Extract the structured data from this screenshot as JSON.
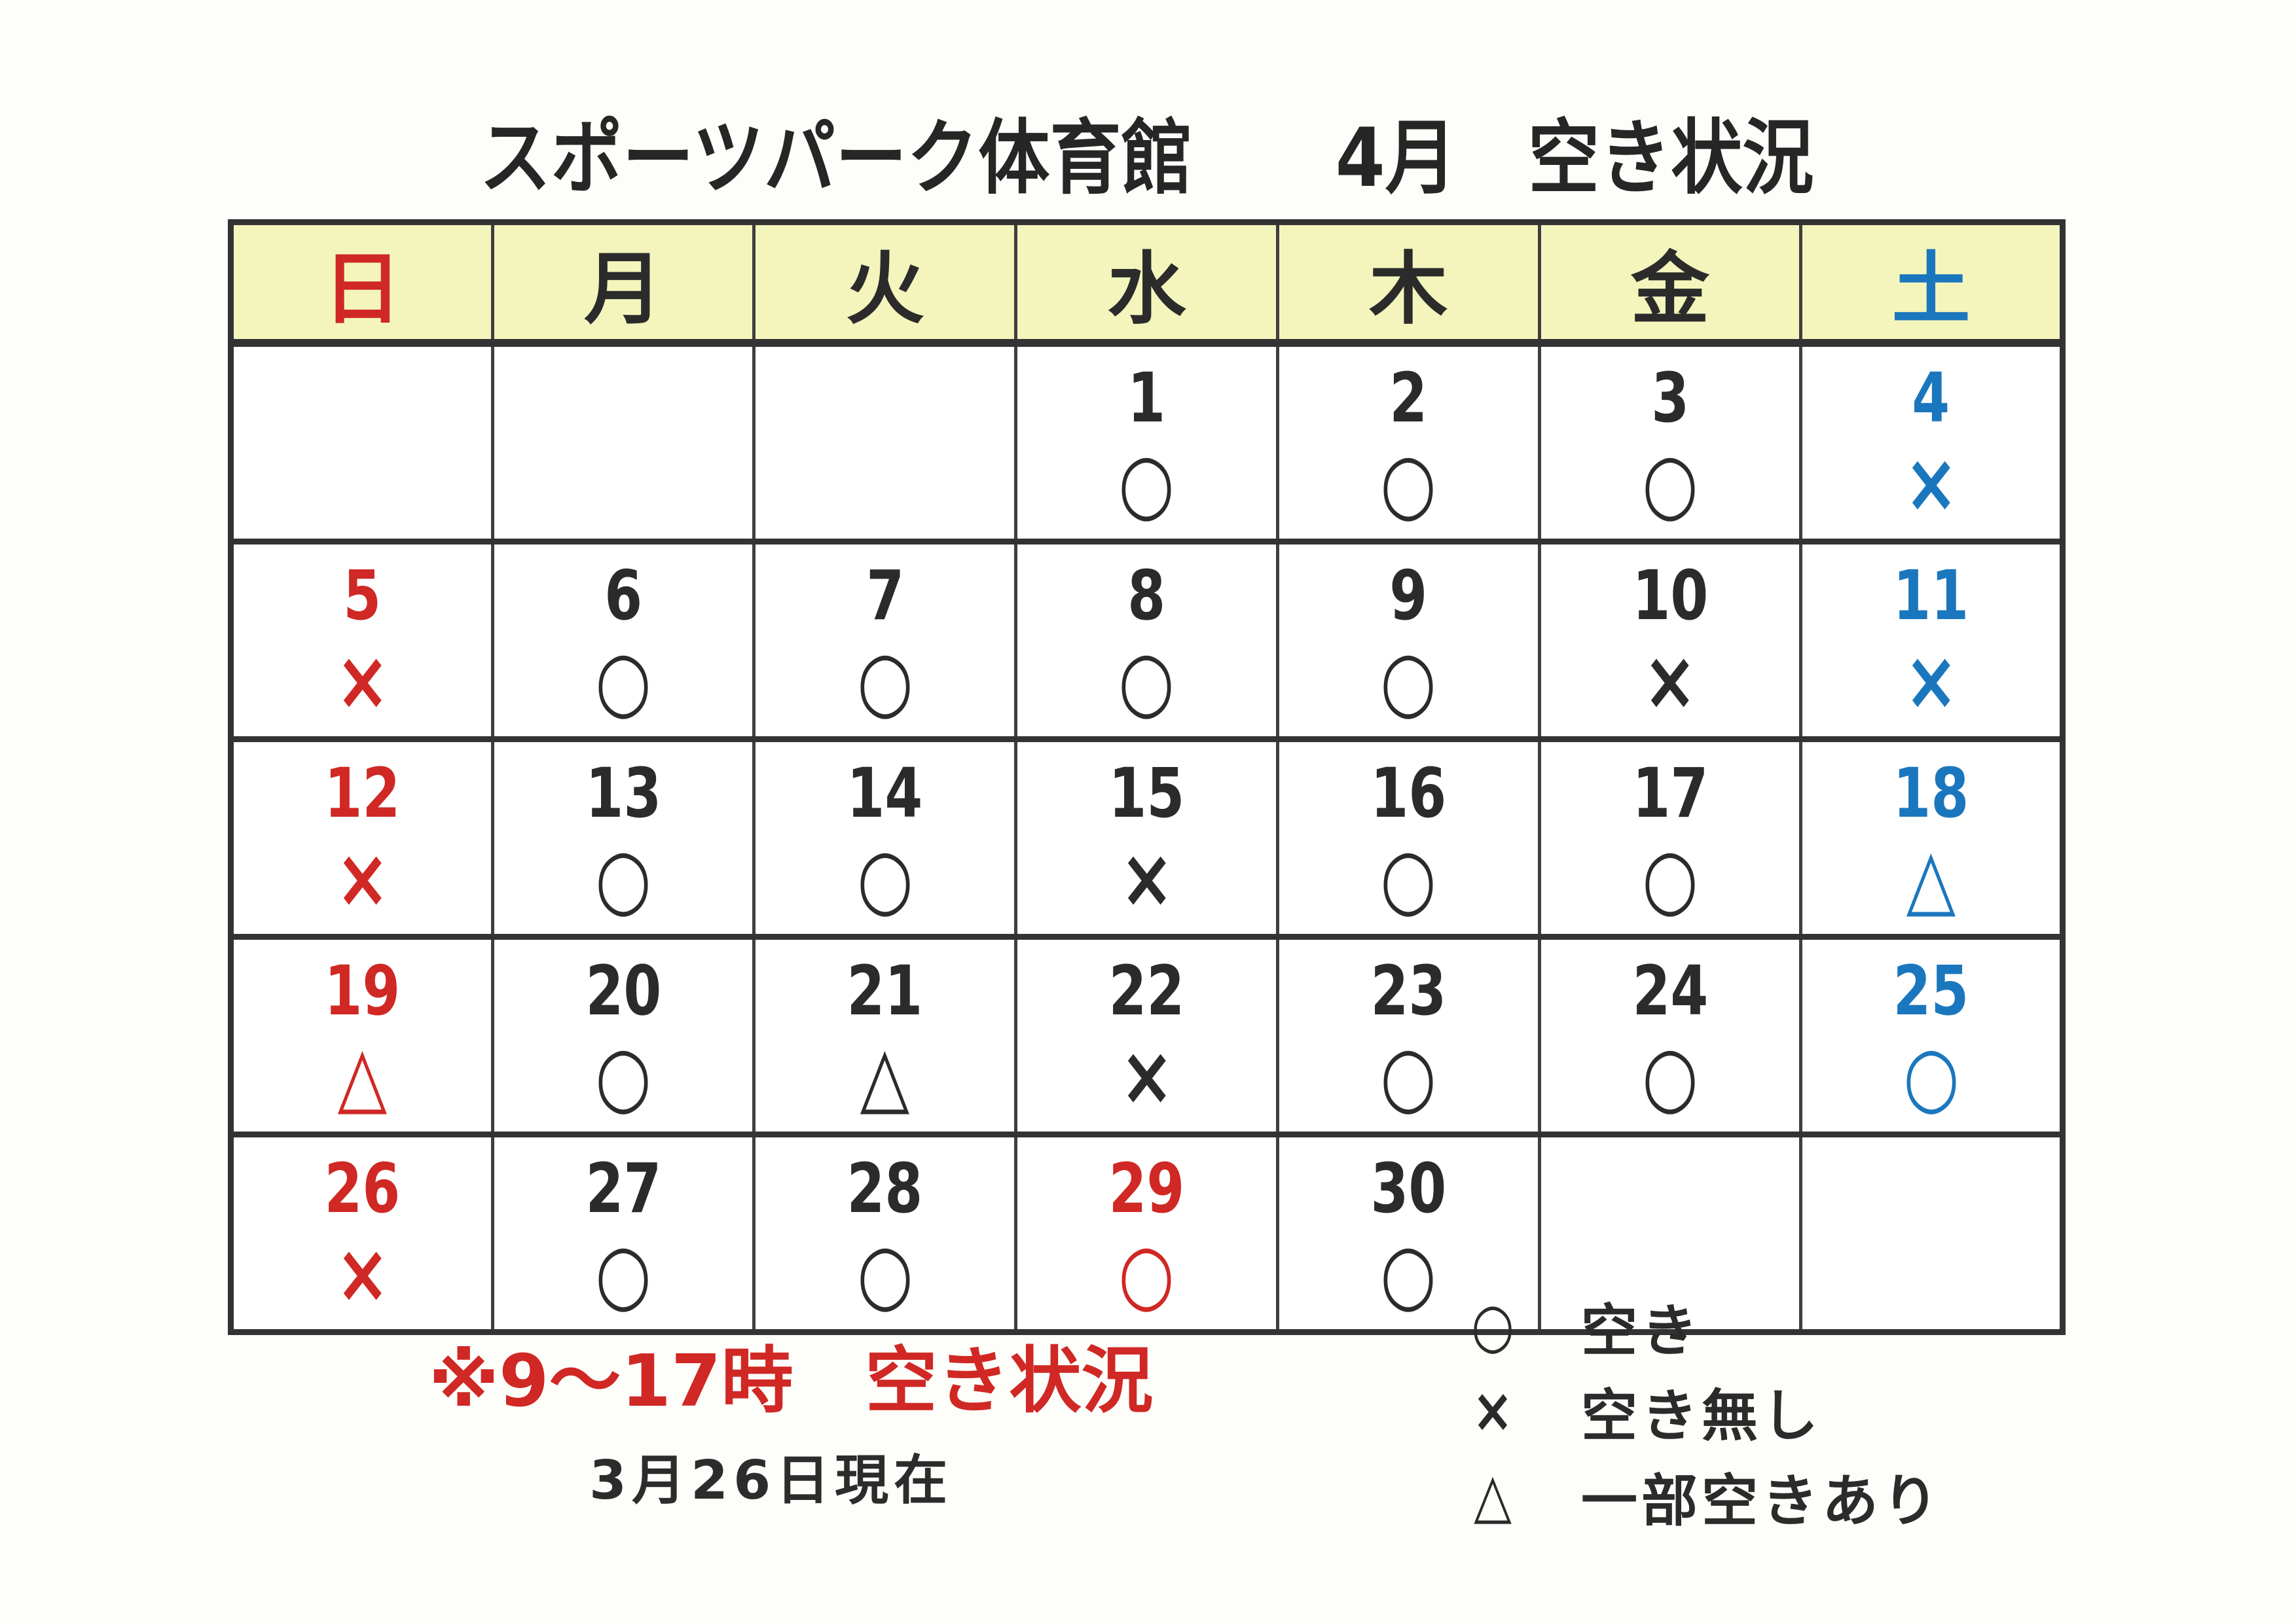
{
  "title": "スポーツパーク体育館　　4月　空き状況",
  "colors": {
    "red": "#d02824",
    "blue": "#1b77bd",
    "black": "#2b2b2b"
  },
  "calendar": {
    "weekdays": [
      {
        "key": "sun",
        "label": "日",
        "color": "red"
      },
      {
        "key": "mon",
        "label": "月",
        "color": "black"
      },
      {
        "key": "tue",
        "label": "火",
        "color": "black"
      },
      {
        "key": "wed",
        "label": "水",
        "color": "black"
      },
      {
        "key": "thu",
        "label": "木",
        "color": "black"
      },
      {
        "key": "fri",
        "label": "金",
        "color": "black"
      },
      {
        "key": "sat",
        "label": "土",
        "color": "blue"
      }
    ],
    "weeks": [
      [
        {
          "day": "",
          "symbol": "",
          "color": "black"
        },
        {
          "day": "",
          "symbol": "",
          "color": "black"
        },
        {
          "day": "",
          "symbol": "",
          "color": "black"
        },
        {
          "day": "1",
          "symbol": "○",
          "color": "black"
        },
        {
          "day": "2",
          "symbol": "○",
          "color": "black"
        },
        {
          "day": "3",
          "symbol": "○",
          "color": "black"
        },
        {
          "day": "4",
          "symbol": "×",
          "color": "blue"
        }
      ],
      [
        {
          "day": "5",
          "symbol": "×",
          "color": "red"
        },
        {
          "day": "6",
          "symbol": "○",
          "color": "black"
        },
        {
          "day": "7",
          "symbol": "○",
          "color": "black"
        },
        {
          "day": "8",
          "symbol": "○",
          "color": "black"
        },
        {
          "day": "9",
          "symbol": "○",
          "color": "black"
        },
        {
          "day": "10",
          "symbol": "×",
          "color": "black"
        },
        {
          "day": "11",
          "symbol": "×",
          "color": "blue"
        }
      ],
      [
        {
          "day": "12",
          "symbol": "×",
          "color": "red"
        },
        {
          "day": "13",
          "symbol": "○",
          "color": "black"
        },
        {
          "day": "14",
          "symbol": "○",
          "color": "black"
        },
        {
          "day": "15",
          "symbol": "×",
          "color": "black"
        },
        {
          "day": "16",
          "symbol": "○",
          "color": "black"
        },
        {
          "day": "17",
          "symbol": "○",
          "color": "black"
        },
        {
          "day": "18",
          "symbol": "△",
          "color": "blue"
        }
      ],
      [
        {
          "day": "19",
          "symbol": "△",
          "color": "red"
        },
        {
          "day": "20",
          "symbol": "○",
          "color": "black"
        },
        {
          "day": "21",
          "symbol": "△",
          "color": "black"
        },
        {
          "day": "22",
          "symbol": "×",
          "color": "black"
        },
        {
          "day": "23",
          "symbol": "○",
          "color": "black"
        },
        {
          "day": "24",
          "symbol": "○",
          "color": "black"
        },
        {
          "day": "25",
          "symbol": "○",
          "color": "blue"
        }
      ],
      [
        {
          "day": "26",
          "symbol": "×",
          "color": "red"
        },
        {
          "day": "27",
          "symbol": "○",
          "color": "black"
        },
        {
          "day": "28",
          "symbol": "○",
          "color": "black"
        },
        {
          "day": "29",
          "symbol": "○",
          "color": "red"
        },
        {
          "day": "30",
          "symbol": "○",
          "color": "black"
        },
        {
          "day": "",
          "symbol": "",
          "color": "black"
        },
        {
          "day": "",
          "symbol": "",
          "color": "black"
        }
      ]
    ]
  },
  "footnote": "※9～17時　空き状況",
  "as_of": "3月26日現在",
  "legend": [
    {
      "symbol": "○",
      "label": "空き"
    },
    {
      "symbol": "×",
      "label": "空き無し"
    },
    {
      "symbol": "△",
      "label": "一部空きあり"
    }
  ]
}
